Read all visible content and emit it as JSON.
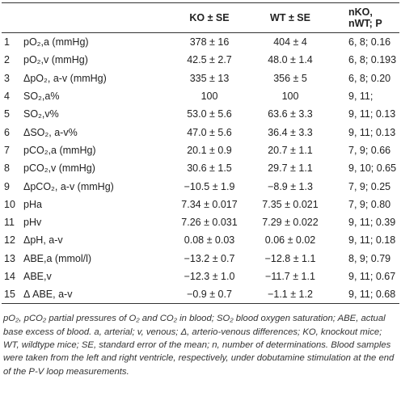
{
  "table": {
    "header": [
      "KO ± SE",
      "WT ± SE",
      "nKO, nWT; P"
    ],
    "rows": [
      [
        "1",
        "pO₂,a (mmHg)",
        "378 ± 16",
        "404 ± 4",
        "6, 8; 0.16"
      ],
      [
        "2",
        "pO₂,v (mmHg)",
        "42.5 ± 2.7",
        "48.0 ± 1.4",
        "6, 8; 0.193"
      ],
      [
        "3",
        "ΔpO₂, a-v (mmHg)",
        "335 ± 13",
        "356 ± 5",
        "6, 8; 0.20"
      ],
      [
        "4",
        "SO₂,a%",
        "100",
        "100",
        "9, 11;"
      ],
      [
        "5",
        "SO₂,v%",
        "53.0 ± 5.6",
        "63.6 ± 3.3",
        "9, 11; 0.13"
      ],
      [
        "6",
        "ΔSO₂, a-v%",
        "47.0 ± 5.6",
        "36.4 ± 3.3",
        "9, 11; 0.13"
      ],
      [
        "7",
        "pCO₂,a (mmHg)",
        "20.1 ± 0.9",
        "20.7 ± 1.1",
        "7, 9; 0.66"
      ],
      [
        "8",
        "pCO₂,v (mmHg)",
        "30.6 ± 1.5",
        "29.7 ± 1.1",
        "9, 10; 0.65"
      ],
      [
        "9",
        "ΔpCO₂, a-v (mmHg)",
        "−10.5 ± 1.9",
        "−8.9 ± 1.3",
        "7, 9; 0.25"
      ],
      [
        "10",
        "pHa",
        "7.34 ± 0.017",
        "7.35 ± 0.021",
        "7, 9; 0.80"
      ],
      [
        "11",
        "pHv",
        "7.26 ± 0.031",
        "7.29 ± 0.022",
        "9, 11; 0.39"
      ],
      [
        "12",
        "ΔpH, a-v",
        "0.08 ± 0.03",
        "0.06 ± 0.02",
        "9, 11; 0.18"
      ],
      [
        "13",
        "ABE,a (mmol/l)",
        "−13.2 ± 0.7",
        "−12.8 ± 1.1",
        "8, 9; 0.79"
      ],
      [
        "14",
        "ABE,v",
        "−12.3 ± 1.0",
        "−11.7 ± 1.1",
        "9, 11; 0.67"
      ],
      [
        "15",
        "Δ ABE, a-v",
        "−0.9 ± 0.7",
        "−1.1 ± 1.2",
        "9, 11; 0.68"
      ]
    ],
    "footnote": "pO₂, pCO₂ partial pressures of O₂ and CO₂ in blood; SO₂ blood oxygen saturation; ABE, actual base excess of blood. a, arterial; v, venous; Δ, arterio-venous differences; KO, knockout mice; WT, wildtype mice; SE, standard error of the mean; n, number of determinations. Blood samples were taken from the left and right ventricle, respectively, under dobutamine stimulation at the end of the P-V loop measurements."
  }
}
